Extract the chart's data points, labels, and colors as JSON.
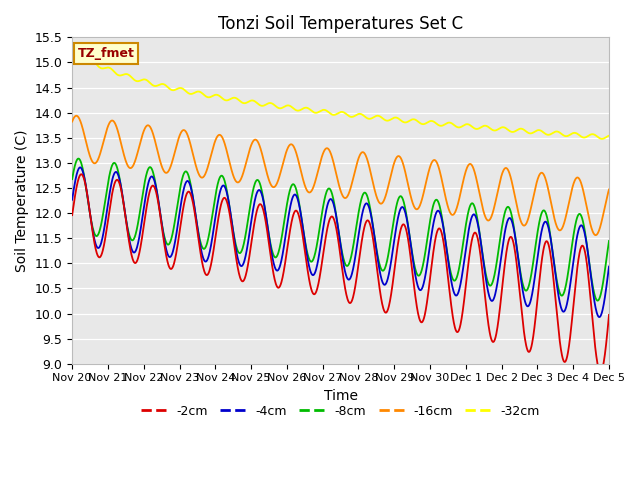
{
  "title": "Tonzi Soil Temperatures Set C",
  "ylabel": "Soil Temperature (C)",
  "xlabel": "Time",
  "ylim": [
    9.0,
    15.5
  ],
  "yticks": [
    9.0,
    9.5,
    10.0,
    10.5,
    11.0,
    11.5,
    12.0,
    12.5,
    13.0,
    13.5,
    14.0,
    14.5,
    15.0,
    15.5
  ],
  "xtick_labels": [
    "Nov 20",
    "Nov 21",
    "Nov 22",
    "Nov 23",
    "Nov 24",
    "Nov 25",
    "Nov 26",
    "Nov 27",
    "Nov 28",
    "Nov 29",
    "Nov 30",
    "Dec 1",
    "Dec 2",
    "Dec 3",
    "Dec 4",
    "Dec 5"
  ],
  "colors": {
    "-2cm": "#dd0000",
    "-4cm": "#0000cc",
    "-8cm": "#00bb00",
    "-16cm": "#ff8800",
    "-32cm": "#ffff00"
  },
  "legend_entries": [
    "-2cm",
    "-4cm",
    "-8cm",
    "-16cm",
    "-32cm"
  ],
  "fmet_label": "TZ_fmet",
  "fig_bg": "#ffffff",
  "plot_bg": "#e8e8e8",
  "title_fontsize": 12,
  "axis_fontsize": 10,
  "tick_fontsize": 9
}
